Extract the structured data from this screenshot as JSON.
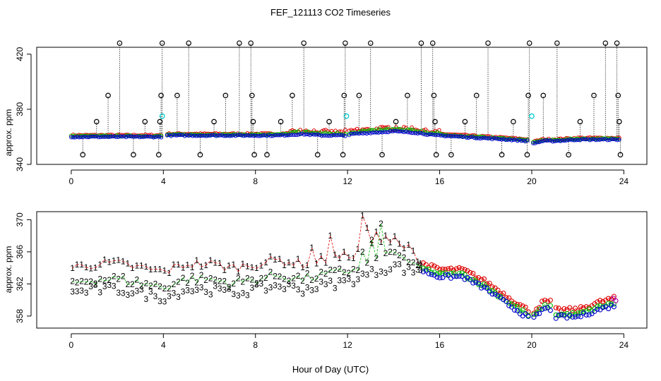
{
  "figure": {
    "title": "FEF_121113  CO2 Timeseries",
    "xlabel": "Hour of Day (UTC)"
  },
  "chart_data": [
    {
      "type": "scatter",
      "ylabel": "approx. ppm",
      "xlim": [
        -1.5,
        25
      ],
      "ylim": [
        340,
        425
      ],
      "x_ticks": [
        0,
        4,
        8,
        12,
        16,
        20,
        24
      ],
      "y_ticks": [
        340,
        380,
        420
      ],
      "colors": {
        "level1": "#dd0000",
        "level2": "#00bb00",
        "level3": "#0000cc",
        "other": "#000000",
        "cal": "#00cccc"
      },
      "baseline": [
        [
          0,
          360
        ],
        [
          4,
          360
        ],
        [
          4.1,
          361
        ],
        [
          6,
          361
        ],
        [
          8,
          361
        ],
        [
          9,
          361
        ],
        [
          10,
          362
        ],
        [
          11,
          361
        ],
        [
          12,
          361
        ],
        [
          12.2,
          362
        ],
        [
          13,
          363
        ],
        [
          14,
          364
        ],
        [
          15,
          363
        ],
        [
          15.8,
          361
        ],
        [
          16,
          361
        ],
        [
          17,
          360
        ],
        [
          18,
          359
        ],
        [
          19,
          358
        ],
        [
          19.8,
          357
        ],
        [
          20,
          355
        ],
        [
          20.5,
          357
        ],
        [
          21,
          357
        ],
        [
          22,
          358
        ],
        [
          23,
          358
        ],
        [
          23.8,
          358
        ]
      ],
      "spikes": [
        [
          0.5,
          347
        ],
        [
          1.1,
          371
        ],
        [
          1.6,
          390
        ],
        [
          2.1,
          428
        ],
        [
          2.7,
          347
        ],
        [
          3.2,
          371
        ],
        [
          3.8,
          347
        ],
        [
          3.85,
          371
        ],
        [
          3.9,
          390
        ],
        [
          3.95,
          428
        ],
        [
          4.6,
          390
        ],
        [
          5.1,
          428
        ],
        [
          5.6,
          347
        ],
        [
          6.2,
          371
        ],
        [
          6.7,
          390
        ],
        [
          7.3,
          428
        ],
        [
          7.8,
          428
        ],
        [
          7.85,
          390
        ],
        [
          7.9,
          371
        ],
        [
          7.95,
          347
        ],
        [
          8.5,
          347
        ],
        [
          9.1,
          371
        ],
        [
          9.6,
          390
        ],
        [
          10.1,
          428
        ],
        [
          10.7,
          347
        ],
        [
          11.2,
          371
        ],
        [
          11.8,
          347
        ],
        [
          11.85,
          390
        ],
        [
          11.9,
          428
        ],
        [
          12.5,
          390
        ],
        [
          13.0,
          428
        ],
        [
          13.5,
          347
        ],
        [
          14.1,
          371
        ],
        [
          14.6,
          390
        ],
        [
          15.2,
          428
        ],
        [
          15.7,
          428
        ],
        [
          15.75,
          390
        ],
        [
          15.8,
          371
        ],
        [
          15.85,
          347
        ],
        [
          16.5,
          347
        ],
        [
          17.1,
          371
        ],
        [
          17.6,
          390
        ],
        [
          18.1,
          428
        ],
        [
          18.7,
          347
        ],
        [
          19.2,
          371
        ],
        [
          19.8,
          347
        ],
        [
          19.85,
          390
        ],
        [
          19.9,
          428
        ],
        [
          20.5,
          390
        ],
        [
          21.1,
          428
        ],
        [
          21.6,
          347
        ],
        [
          22.1,
          371
        ],
        [
          22.7,
          390
        ],
        [
          23.2,
          428
        ],
        [
          23.7,
          428
        ],
        [
          23.75,
          390
        ],
        [
          23.8,
          371
        ],
        [
          23.85,
          347
        ]
      ],
      "cal_points": [
        [
          3.95,
          375
        ],
        [
          11.95,
          375
        ],
        [
          20.0,
          375
        ]
      ]
    },
    {
      "type": "scatter",
      "ylabel": "approx. ppm",
      "xlim": [
        -1.5,
        25
      ],
      "ylim": [
        356.5,
        371
      ],
      "x_ticks": [
        0,
        4,
        8,
        12,
        16,
        20,
        24
      ],
      "y_ticks": [
        358,
        362,
        366,
        370
      ],
      "series_markers": [
        "1",
        "2",
        "3"
      ],
      "colors": {
        "level1": "#dd0000",
        "level2": "#00bb00",
        "level3": "#0000cc",
        "mix": "#aa00aa"
      },
      "base": [
        [
          0,
          361.5
        ],
        [
          1,
          362
        ],
        [
          2,
          362
        ],
        [
          3,
          361.5
        ],
        [
          4,
          361
        ],
        [
          5,
          362
        ],
        [
          6,
          362
        ],
        [
          7,
          361.5
        ],
        [
          8,
          362
        ],
        [
          9,
          362.5
        ],
        [
          10,
          362
        ],
        [
          11,
          362.5
        ],
        [
          12,
          363
        ],
        [
          13,
          364
        ],
        [
          14,
          365
        ],
        [
          15,
          364
        ],
        [
          16,
          363
        ],
        [
          17,
          363
        ],
        [
          18,
          361.5
        ],
        [
          19,
          359.5
        ],
        [
          19.8,
          358
        ],
        [
          20,
          357.5
        ],
        [
          20.5,
          359
        ],
        [
          20.8,
          359
        ],
        [
          21,
          358
        ],
        [
          22,
          358
        ],
        [
          23,
          359
        ],
        [
          23.7,
          359.5
        ]
      ],
      "offsets": {
        "l1_day": 2.5,
        "l1_late": 0.8,
        "l2_day": 0.6,
        "l2_late": 0.2,
        "l3_day": -0.7,
        "l3_late": -0.1
      },
      "peaks_l1": [
        [
          10.5,
          366.5
        ],
        [
          11.3,
          368
        ],
        [
          12.6,
          370.5
        ],
        [
          12.9,
          369
        ],
        [
          13.3,
          368.5
        ],
        [
          13.7,
          368
        ],
        [
          14.2,
          367
        ]
      ],
      "peaks_l2": [
        [
          12.7,
          366
        ],
        [
          13.0,
          367.5
        ],
        [
          13.5,
          369.5
        ],
        [
          13.9,
          366
        ]
      ]
    }
  ]
}
